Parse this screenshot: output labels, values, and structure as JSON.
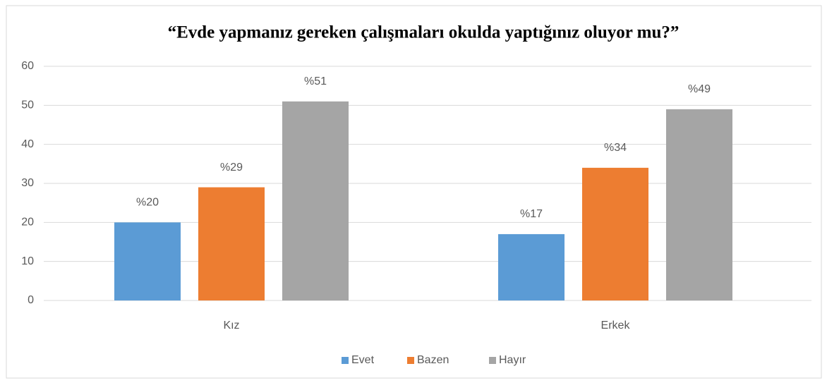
{
  "chart_data": {
    "type": "bar",
    "title": "“Evde yapmanız gereken çalışmaları okulda yaptığınız oluyor mu?”",
    "categories": [
      "Kız",
      "Erkek"
    ],
    "series": [
      {
        "name": "Evet",
        "color": "#5b9bd5",
        "values": [
          20,
          17
        ],
        "value_labels": [
          "%20",
          "%17"
        ]
      },
      {
        "name": "Bazen",
        "color": "#ed7d31",
        "values": [
          29,
          34
        ],
        "value_labels": [
          "%29",
          "%34"
        ]
      },
      {
        "name": "Hayır",
        "color": "#a5a5a5",
        "values": [
          51,
          49
        ],
        "value_labels": [
          "%51",
          "%49"
        ]
      }
    ],
    "ylim": [
      0,
      60
    ],
    "yticks": [
      0,
      10,
      20,
      30,
      40,
      50,
      60
    ],
    "grid": true,
    "legend": "bottom"
  }
}
